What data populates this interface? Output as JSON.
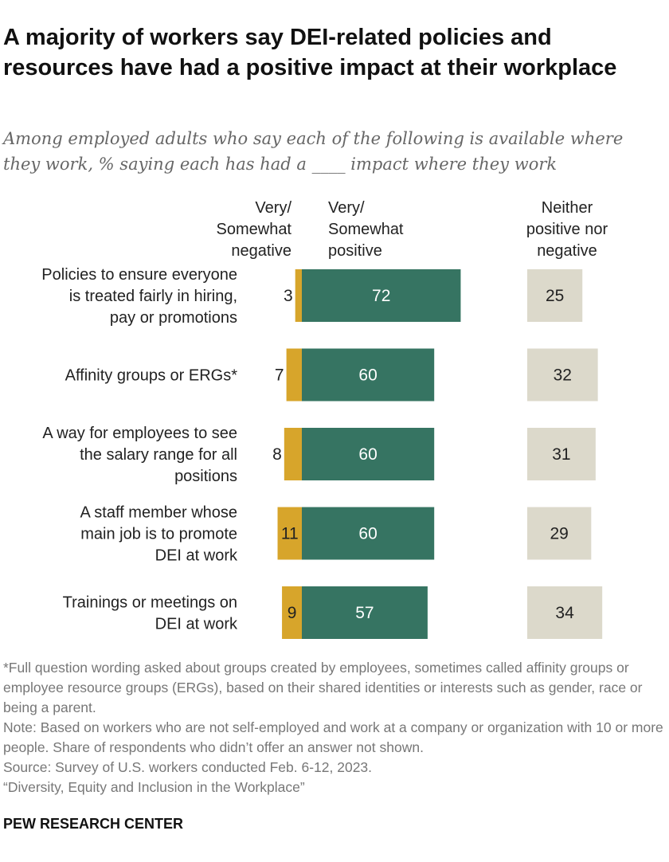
{
  "title": "A majority of workers say DEI-related policies and resources have had a positive impact at their workplace",
  "subtitle": "Among employed adults who say each of the following is available where they work, % saying each has had a ____ impact where they work",
  "columns": {
    "negative": [
      "Very/",
      "Somewhat",
      "negative"
    ],
    "positive": [
      "Very/",
      "Somewhat",
      "positive"
    ],
    "neither": [
      "Neither",
      "positive nor",
      "negative"
    ]
  },
  "colors": {
    "negative": "#d7a52b",
    "positive": "#367462",
    "neither": "#dcd9cb"
  },
  "chart_data": {
    "type": "bar",
    "stacked": "diverging",
    "categories": [
      [
        "Policies to ensure everyone",
        "is treated fairly in hiring,",
        "pay or promotions"
      ],
      [
        "Affinity groups or ERGs*"
      ],
      [
        "A way for employees to see",
        "the salary range for all",
        "positions"
      ],
      [
        "A staff member whose",
        "main job is to promote",
        "DEI at work"
      ],
      [
        "Trainings or meetings on",
        "DEI at work"
      ]
    ],
    "series": [
      {
        "name": "Very/Somewhat negative",
        "values": [
          3,
          7,
          8,
          11,
          9
        ]
      },
      {
        "name": "Very/Somewhat positive",
        "values": [
          72,
          60,
          60,
          60,
          57
        ]
      },
      {
        "name": "Neither positive nor negative",
        "values": [
          25,
          32,
          31,
          29,
          34
        ]
      }
    ]
  },
  "notes": [
    "*Full question wording asked about groups created by employees, sometimes called affinity groups or employee resource groups (ERGs), based on their shared identities or interests such as gender, race or being a parent.",
    "Note: Based on workers who are not self-employed and work at a company or organization with 10 or more people. Share of respondents who didn’t offer an answer not shown.",
    "Source: Survey of U.S. workers conducted Feb. 6-12, 2023.",
    "“Diversity, Equity and Inclusion in the Workplace”"
  ],
  "footer": "PEW RESEARCH CENTER"
}
